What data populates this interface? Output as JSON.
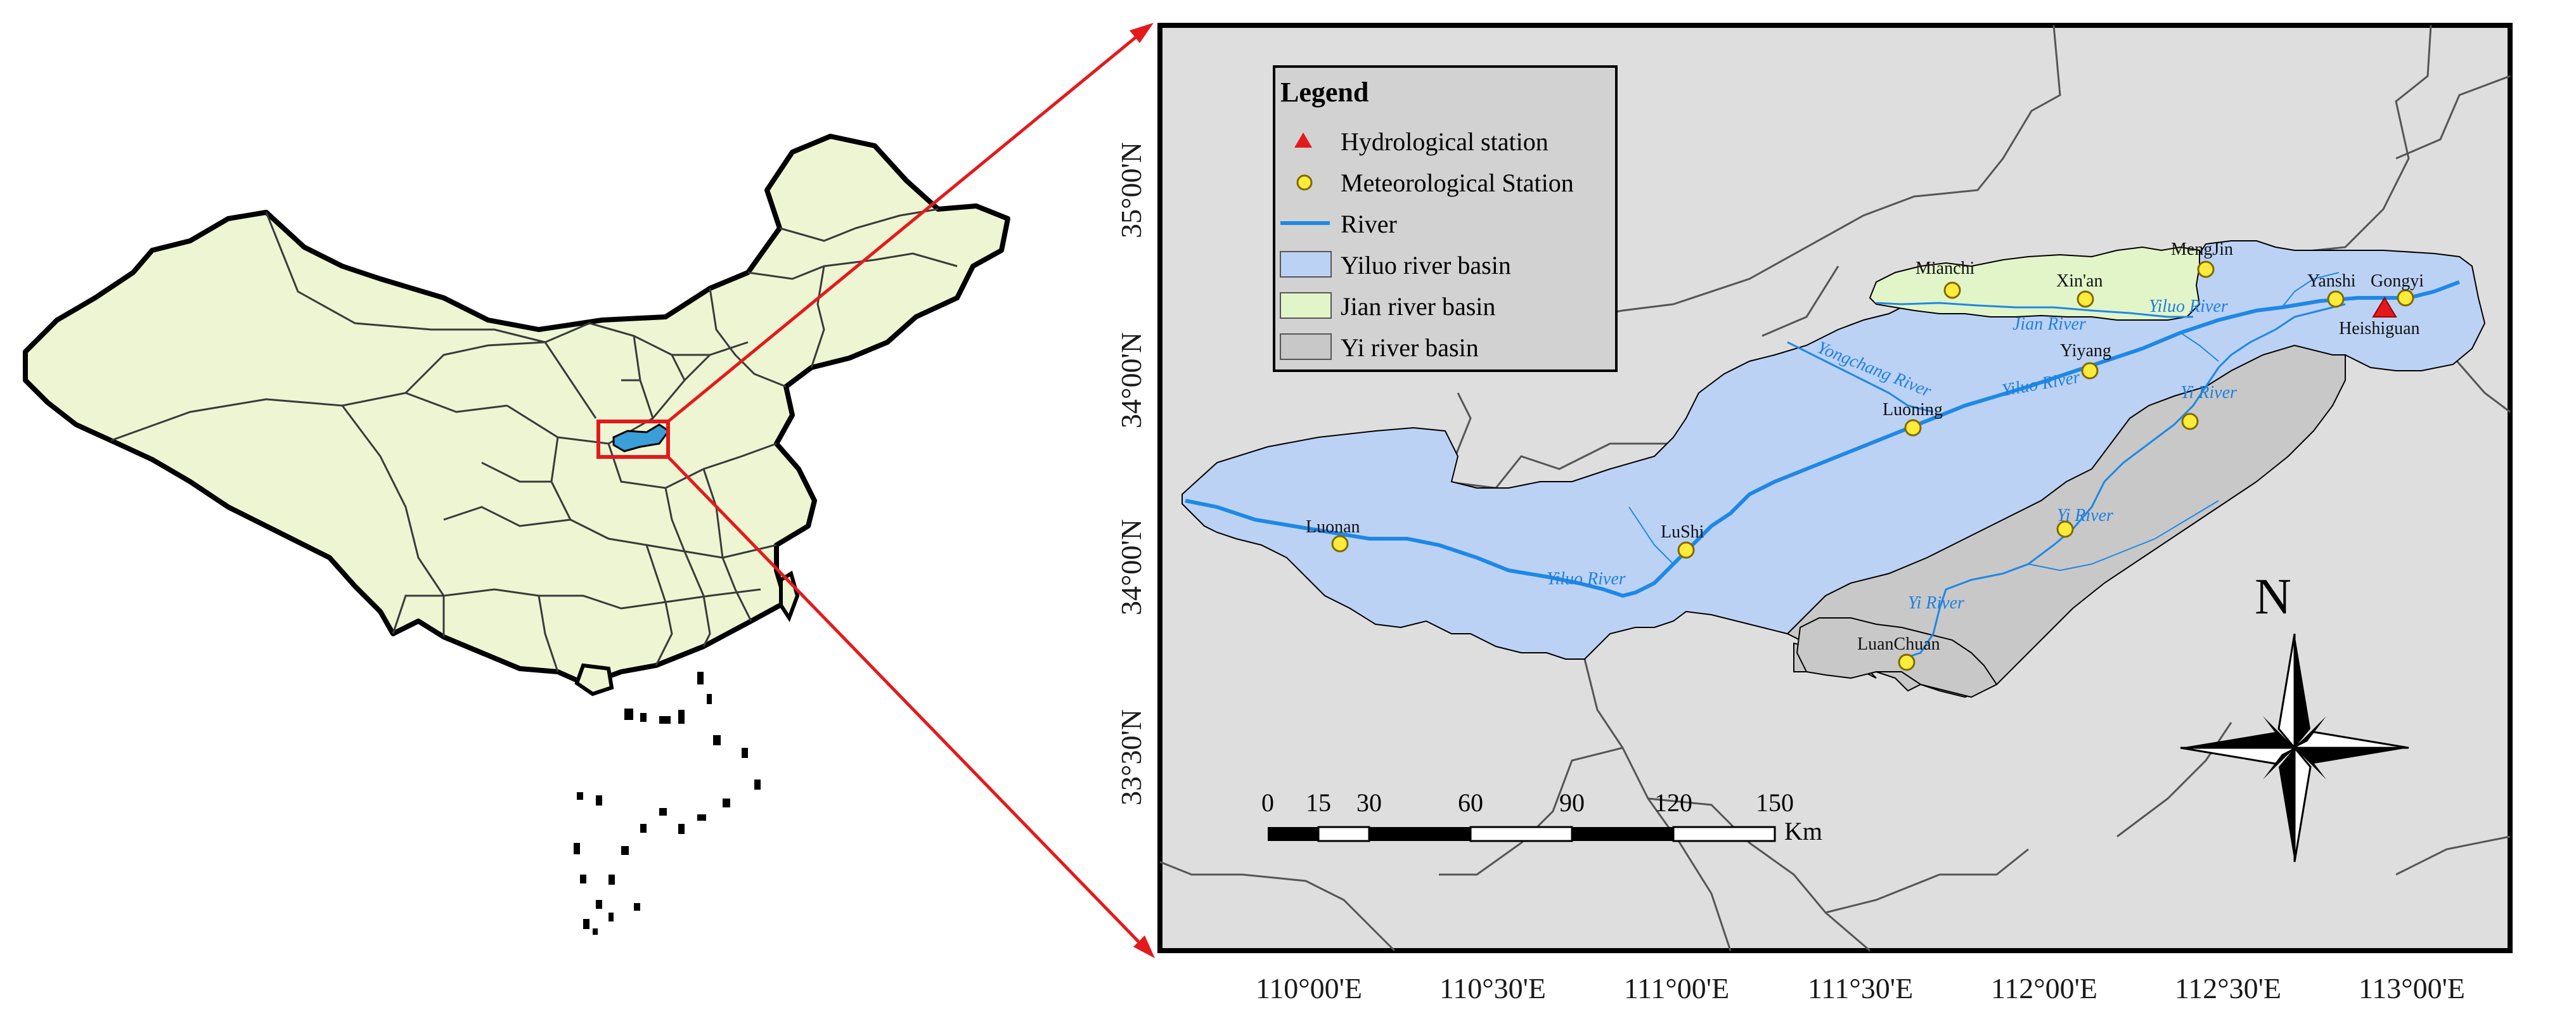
{
  "legend": {
    "title": "Legend",
    "items": [
      {
        "label": "Hydrological station",
        "symbol": "red-triangle",
        "color": "#e31a1c"
      },
      {
        "label": "Meteorological Station",
        "symbol": "yellow-circle",
        "color": "#ffeb3b"
      },
      {
        "label": "River",
        "symbol": "blue-line",
        "color": "#1e88e5"
      },
      {
        "label": "Yiluo river basin",
        "symbol": "blue-patch",
        "color": "#bcd2f5"
      },
      {
        "label": "Jian river basin",
        "symbol": "green-patch",
        "color": "#e2f5c8"
      },
      {
        "label": "Yi river basin",
        "symbol": "gray-patch",
        "color": "#c8c8c8"
      }
    ]
  },
  "axes": {
    "lat_labels": [
      "35°00'N",
      "34°00'N",
      "34°00'N",
      "33°30'N"
    ],
    "lon_labels": [
      "110°00'E",
      "110°30'E",
      "111°00'E",
      "111°30'E",
      "112°00'E",
      "112°30'E",
      "113°00'E"
    ]
  },
  "stations": {
    "meteorological": [
      "Mianchi",
      "Xin'an",
      "MengJin",
      "Yanshi",
      "Gongyi",
      "Yiyang",
      "Luoning",
      "Luonan",
      "LuShi",
      "LuanChuan"
    ],
    "hydrological": [
      "Heishiguan"
    ]
  },
  "rivers": [
    "Yiluo River",
    "Jian River",
    "Yongchang River",
    "Yiluo River",
    "Yi River",
    "Yi River",
    "Yi River",
    "Yiluo River"
  ],
  "scale_bar": {
    "ticks": [
      "0",
      "15",
      "30",
      "60",
      "90",
      "120",
      "150"
    ],
    "unit": "Km"
  },
  "north_arrow": {
    "label": "N"
  },
  "colors": {
    "china_fill": "#eef5d3",
    "map_bg": "#dedede",
    "yiluo_basin": "#bcd2f5",
    "jian_basin": "#e2f5c8",
    "yi_basin": "#c8c8c8",
    "river": "#1e88e5",
    "highlight": "#e31a1c"
  }
}
